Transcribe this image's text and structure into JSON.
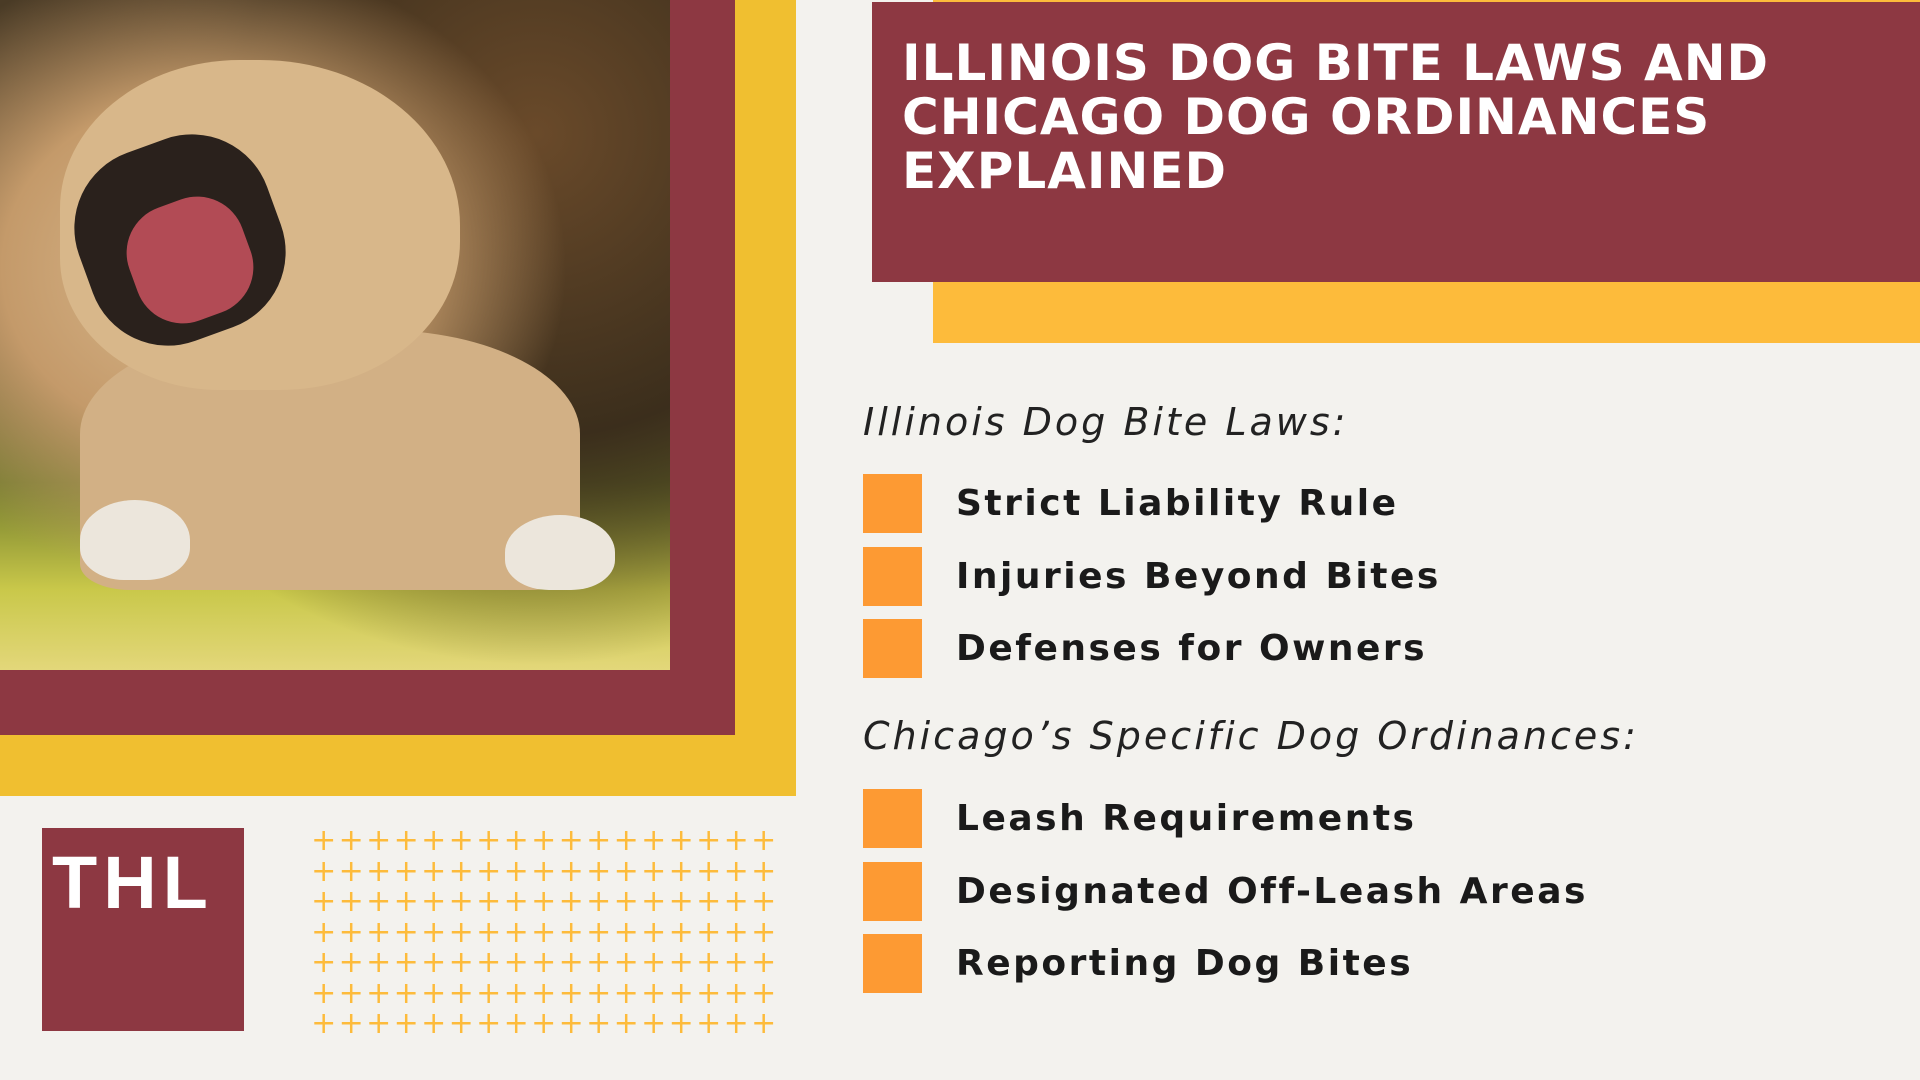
{
  "title": "ILLINOIS DOG BITE LAWS AND CHICAGO DOG ORDINANCES EXPLAINED",
  "sections": [
    {
      "heading": "Illinois Dog Bite Laws:",
      "items": [
        "Strict Liability Rule",
        "Injuries Beyond Bites",
        "Defenses for Owners"
      ]
    },
    {
      "heading": "Chicago’s Specific Dog Ordinances:",
      "items": [
        "Leash Requirements",
        "Designated Off-Leash Areas",
        "Reporting Dog Bites"
      ]
    }
  ],
  "logo": {
    "text": "THL"
  },
  "photo": {
    "subject": "snarling-dog"
  },
  "colors": {
    "maroon": "#8d3842",
    "yellow": "#f0bf30",
    "title_accent": "#fdbb3b",
    "bullet": "#fd9a33",
    "background": "#f3f2ee"
  }
}
